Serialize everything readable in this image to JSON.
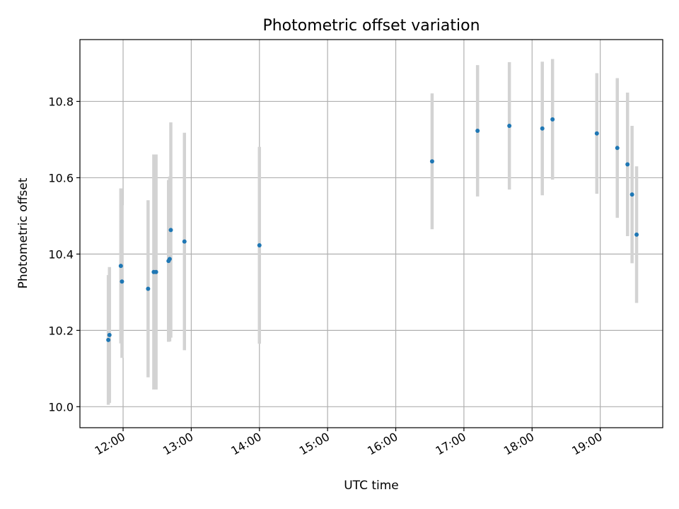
{
  "chart_data": {
    "type": "scatter",
    "title": "Photometric offset variation",
    "xlabel": "UTC time",
    "ylabel": "Photometric offset",
    "xlim": [
      "11:22",
      "19:55"
    ],
    "ylim": [
      9.945,
      10.962
    ],
    "x_ticks": [
      "12:00",
      "13:00",
      "14:00",
      "15:00",
      "16:00",
      "17:00",
      "18:00",
      "19:00"
    ],
    "y_ticks": [
      10.0,
      10.2,
      10.4,
      10.6,
      10.8
    ],
    "y_tick_labels": [
      "10.0",
      "10.2",
      "10.4",
      "10.6",
      "10.8"
    ],
    "grid": true,
    "colors": {
      "point": "#1f77b4",
      "errorbar": "#d3d3d3"
    },
    "points": [
      {
        "x": "11:47",
        "y": 10.175,
        "err": 0.17
      },
      {
        "x": "11:48",
        "y": 10.188,
        "err": 0.178
      },
      {
        "x": "11:58",
        "y": 10.369,
        "err": 0.203
      },
      {
        "x": "11:59",
        "y": 10.328,
        "err": 0.2
      },
      {
        "x": "12:22",
        "y": 10.309,
        "err": 0.232
      },
      {
        "x": "12:27",
        "y": 10.353,
        "err": 0.308
      },
      {
        "x": "12:29",
        "y": 10.353,
        "err": 0.308
      },
      {
        "x": "12:40",
        "y": 10.382,
        "err": 0.212
      },
      {
        "x": "12:41",
        "y": 10.387,
        "err": 0.216
      },
      {
        "x": "12:42",
        "y": 10.463,
        "err": 0.282
      },
      {
        "x": "12:54",
        "y": 10.433,
        "err": 0.285
      },
      {
        "x": "14:00",
        "y": 10.423,
        "err": 0.258
      },
      {
        "x": "16:32",
        "y": 10.643,
        "err": 0.178
      },
      {
        "x": "17:12",
        "y": 10.723,
        "err": 0.172
      },
      {
        "x": "17:40",
        "y": 10.736,
        "err": 0.167
      },
      {
        "x": "18:09",
        "y": 10.729,
        "err": 0.175
      },
      {
        "x": "18:18",
        "y": 10.753,
        "err": 0.158
      },
      {
        "x": "18:57",
        "y": 10.716,
        "err": 0.158
      },
      {
        "x": "19:15",
        "y": 10.678,
        "err": 0.183
      },
      {
        "x": "19:24",
        "y": 10.635,
        "err": 0.188
      },
      {
        "x": "19:28",
        "y": 10.556,
        "err": 0.18
      },
      {
        "x": "19:32",
        "y": 10.451,
        "err": 0.179
      }
    ]
  }
}
